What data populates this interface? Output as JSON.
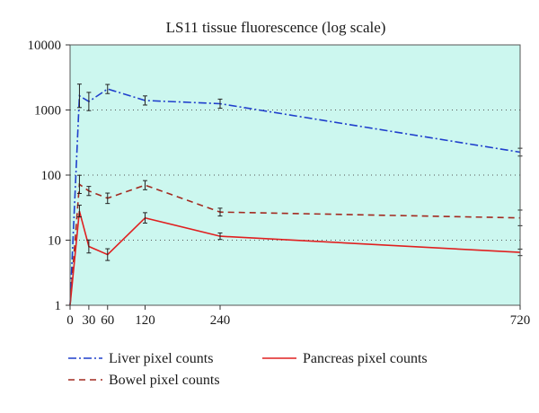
{
  "chart_data": {
    "type": "line",
    "title": "LS11 tissue fluorescence (log scale)",
    "xlabel": "",
    "ylabel": "",
    "y_scale": "log",
    "xlim": [
      0,
      720
    ],
    "ylim": [
      1,
      10000
    ],
    "x_ticks": [
      "0",
      "30",
      "60",
      "120",
      "240",
      "720"
    ],
    "y_ticks": [
      "1",
      "10",
      "100",
      "1000",
      "10000"
    ],
    "grid": "horizontal dotted",
    "plot_background": "#ccf7ef",
    "legend_position": "bottom",
    "series": [
      {
        "name": "Liver pixel counts",
        "color": "#1f3fcc",
        "style": "dash-dot",
        "x": [
          0,
          15,
          30,
          60,
          120,
          240,
          720
        ],
        "y": [
          1,
          1650,
          1350,
          2100,
          1400,
          1250,
          225
        ],
        "err": [
          0,
          0.18,
          0.14,
          0.07,
          0.07,
          0.07,
          0.06
        ]
      },
      {
        "name": "Bowel pixel counts",
        "color": "#a32a20",
        "style": "dashed",
        "x": [
          0,
          15,
          30,
          60,
          120,
          240,
          720
        ],
        "y": [
          1,
          72,
          57,
          44,
          70,
          27,
          22
        ],
        "err": [
          0,
          0.14,
          0.07,
          0.08,
          0.07,
          0.06,
          0.12
        ]
      },
      {
        "name": "Pancreas pixel counts",
        "color": "#e02020",
        "style": "solid",
        "x": [
          0,
          15,
          30,
          60,
          120,
          240,
          720
        ],
        "y": [
          1,
          28,
          8,
          6,
          22,
          11.5,
          6.5
        ],
        "err": [
          0,
          0.09,
          0.1,
          0.09,
          0.08,
          0.05,
          0.05
        ]
      }
    ]
  }
}
